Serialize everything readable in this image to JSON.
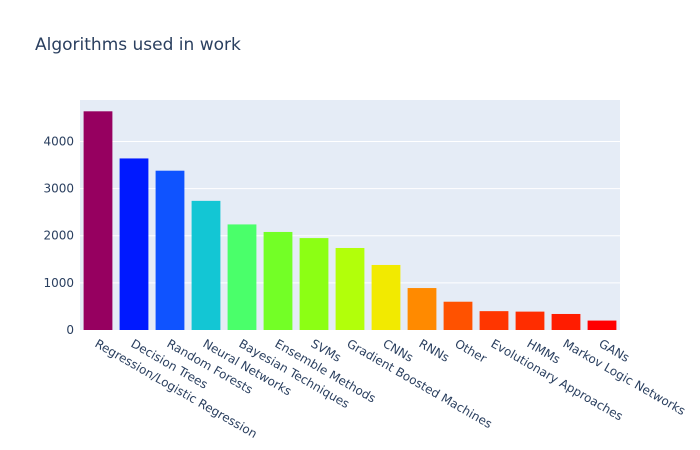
{
  "chart_data": {
    "type": "bar",
    "title": "Algorithms used in work",
    "xlabel": "",
    "ylabel": "",
    "categories": [
      "Regression/Logistic Regression",
      "Decision Trees",
      "Random Forests",
      "Neural Networks",
      "Bayesian Techniques",
      "Ensemble Methods",
      "SVMs",
      "Gradient Boosted Machines",
      "CNNs",
      "RNNs",
      "Other",
      "Evolutionary Approaches",
      "HMMs",
      "Markov Logic Networks",
      "GANs"
    ],
    "values": [
      4640,
      3640,
      3380,
      2740,
      2240,
      2080,
      1950,
      1740,
      1380,
      890,
      600,
      400,
      390,
      340,
      200
    ],
    "colors": [
      "#960060",
      "#0019ff",
      "#0f53ff",
      "#13c6d4",
      "#4aff6a",
      "#73ff26",
      "#8cff14",
      "#b2ff0a",
      "#f2ea00",
      "#ff8a00",
      "#ff5200",
      "#ff3600",
      "#ff2d00",
      "#ff1c00",
      "#ff0000"
    ],
    "y_ticks": [
      0,
      1000,
      2000,
      3000,
      4000
    ],
    "ylim": [
      0,
      4880
    ],
    "grid": true,
    "legend": "none"
  }
}
